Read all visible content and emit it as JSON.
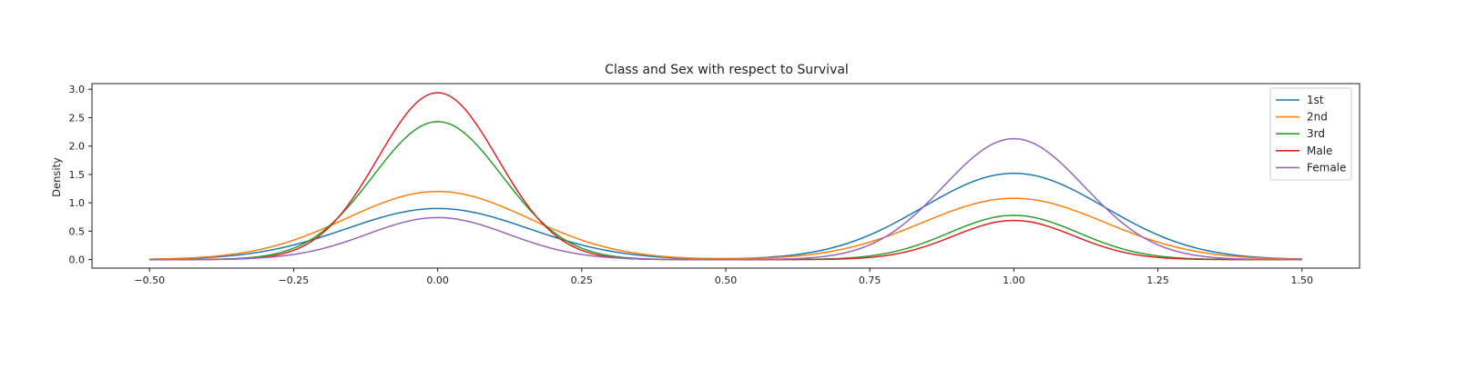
{
  "chart_data": {
    "type": "line",
    "title": "Class and Sex with respect to Survival",
    "xlabel": "",
    "ylabel": "Density",
    "xlim": [
      -0.6,
      1.6
    ],
    "ylim": [
      -0.15,
      3.1
    ],
    "xticks": [
      -0.5,
      -0.25,
      0.0,
      0.25,
      0.5,
      0.75,
      1.0,
      1.25,
      1.5
    ],
    "xtick_labels": [
      "−0.50",
      "−0.25",
      "0.00",
      "0.25",
      "0.50",
      "0.75",
      "1.00",
      "1.25",
      "1.50"
    ],
    "yticks": [
      0.0,
      0.5,
      1.0,
      1.5,
      2.0,
      2.5,
      3.0
    ],
    "ytick_labels": [
      "0.0",
      "0.5",
      "1.0",
      "1.5",
      "2.0",
      "2.5",
      "3.0"
    ],
    "grid": false,
    "legend_position": "top-right",
    "x_range": [
      -0.5,
      1.5
    ],
    "series": [
      {
        "name": "1st",
        "color": "#1f77b4",
        "peaks": [
          {
            "center": 0.0,
            "height": 0.9,
            "sd": 0.158
          },
          {
            "center": 1.0,
            "height": 1.52,
            "sd": 0.158
          }
        ]
      },
      {
        "name": "2nd",
        "color": "#ff7f0e",
        "peaks": [
          {
            "center": 0.0,
            "height": 1.2,
            "sd": 0.158
          },
          {
            "center": 1.0,
            "height": 1.08,
            "sd": 0.158
          }
        ]
      },
      {
        "name": "3rd",
        "color": "#2ca02c",
        "peaks": [
          {
            "center": 0.0,
            "height": 2.43,
            "sd": 0.112
          },
          {
            "center": 1.0,
            "height": 0.78,
            "sd": 0.112
          }
        ]
      },
      {
        "name": "Male",
        "color": "#d62728",
        "peaks": [
          {
            "center": 0.0,
            "height": 2.94,
            "sd": 0.104
          },
          {
            "center": 1.0,
            "height": 0.69,
            "sd": 0.104
          }
        ]
      },
      {
        "name": "Female",
        "color": "#9467bd",
        "peaks": [
          {
            "center": 0.0,
            "height": 0.74,
            "sd": 0.122
          },
          {
            "center": 1.0,
            "height": 2.13,
            "sd": 0.122
          }
        ]
      }
    ]
  }
}
